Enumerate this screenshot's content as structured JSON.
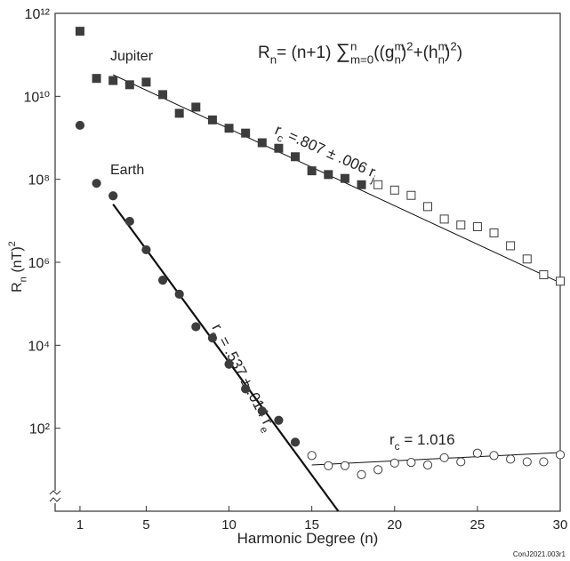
{
  "chart_data": {
    "type": "scatter",
    "formula": [
      {
        "t": "R"
      },
      {
        "t": "n",
        "s": "sub"
      },
      {
        "t": "= (n+1) "
      },
      {
        "t": "∑",
        "big": true
      },
      {
        "t": "n",
        "s": "sup"
      },
      {
        "t": "m=0",
        "s": "sub",
        "stack": true
      },
      {
        "t": "((g"
      },
      {
        "t": "m",
        "s": "sup"
      },
      {
        "t": "n",
        "s": "sub",
        "stack": true
      },
      {
        "t": ")"
      },
      {
        "t": "2",
        "s": "sup"
      },
      {
        "t": "+(h"
      },
      {
        "t": "m",
        "s": "sup"
      },
      {
        "t": "n",
        "s": "sub",
        "stack": true
      },
      {
        "t": ")"
      },
      {
        "t": "2",
        "s": "sup"
      },
      {
        "t": ")"
      }
    ],
    "x_label": "Harmonic Degree (n)",
    "y_label": [
      {
        "t": "R"
      },
      {
        "t": "n",
        "s": "sub"
      },
      {
        "t": " (nT)"
      },
      {
        "t": "2",
        "s": "sup"
      }
    ],
    "xlim": [
      -0.5,
      30
    ],
    "ylim": [
      1,
      1000000000000
    ],
    "y_scale": "log",
    "xticks": [
      1,
      5,
      10,
      15,
      20,
      25,
      30
    ],
    "yticks": [
      {
        "value": 100,
        "label": "10²"
      },
      {
        "value": 10000,
        "label": "10⁴"
      },
      {
        "value": 1000000,
        "label": "10⁶"
      },
      {
        "value": 100000000,
        "label": "10⁸"
      },
      {
        "value": 10000000000,
        "label": "10¹⁰"
      },
      {
        "value": 1000000000000,
        "label": "10¹²"
      }
    ],
    "series": [
      {
        "name": "Jupiter",
        "marker": "square",
        "filled": true,
        "color": "#3d3d3d",
        "x": [
          1,
          2,
          3,
          4,
          5,
          6,
          7,
          8,
          9,
          10,
          11,
          12,
          13,
          14,
          15,
          16,
          17,
          18
        ],
        "values": [
          370000000000,
          27000000000,
          24000000000,
          19000000000,
          22000000000,
          11000000000,
          3900000000,
          5500000000,
          2700000000,
          1700000000,
          1300000000,
          760000000,
          560000000,
          350000000,
          160000000,
          130000000,
          105000000,
          74000000
        ]
      },
      {
        "marker": "square",
        "filled": false,
        "color": "#3d3d3d",
        "x": [
          19,
          20,
          21,
          22,
          23,
          24,
          25,
          26,
          27,
          28,
          29,
          30
        ],
        "values": [
          74000000,
          55000000,
          41000000,
          22000000,
          11000000,
          7900000,
          7200000,
          5100000,
          2500000,
          1200000,
          500000,
          350000
        ]
      },
      {
        "name": "Earth",
        "marker": "circle",
        "filled": true,
        "color": "#3d3d3d",
        "x": [
          1,
          2,
          3,
          4,
          5,
          6,
          7,
          8,
          9,
          10,
          11,
          12,
          13,
          14
        ],
        "values": [
          2000000000,
          80000000,
          40000000,
          9700000,
          2000000,
          370000,
          170000,
          28000,
          15000,
          3500,
          890,
          260,
          155,
          46
        ]
      },
      {
        "marker": "circle",
        "filled": false,
        "color": "#3d3d3d",
        "x": [
          15,
          16,
          17,
          18,
          19,
          20,
          21,
          22,
          23,
          24,
          25,
          26,
          27,
          28,
          29,
          30
        ],
        "values": [
          22,
          12.5,
          12.5,
          7.6,
          10,
          14.5,
          15,
          13,
          19.5,
          15.5,
          25,
          22,
          18,
          15.5,
          15.5,
          23
        ]
      }
    ],
    "fits": [
      {
        "x": [
          3,
          30
        ],
        "values": [
          33000000000,
          320000
        ],
        "width": 1,
        "label": [
          {
            "t": "r"
          },
          {
            "t": "c",
            "s": "sub"
          },
          {
            "t": " =.807 ± .006 r"
          },
          {
            "t": "j",
            "s": "sub"
          }
        ]
      },
      {
        "x": [
          3,
          16.6
        ],
        "values": [
          25000000,
          1
        ],
        "width": 2.2,
        "label": [
          {
            "t": "r"
          },
          {
            "t": "c",
            "s": "sub"
          },
          {
            "t": " = .537 ± .014 r"
          },
          {
            "t": "e",
            "s": "sub"
          }
        ]
      },
      {
        "x": [
          15,
          30
        ],
        "values": [
          13,
          26
        ],
        "width": 1,
        "label": [
          {
            "t": "r"
          },
          {
            "t": "c",
            "s": "sub"
          },
          {
            "t": " = 1.016"
          }
        ]
      }
    ],
    "footer": "ConJ2021.003r1"
  }
}
